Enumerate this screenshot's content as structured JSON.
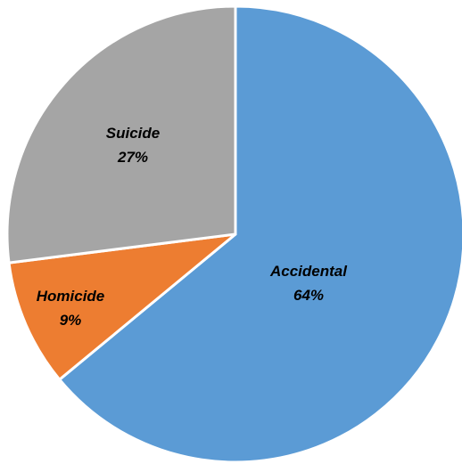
{
  "chart_data": {
    "type": "pie",
    "start_angle_deg": 0,
    "direction": "clockwise",
    "slices": [
      {
        "label": "Accidental",
        "value": 64,
        "display": "64%",
        "color": "#5B9BD5"
      },
      {
        "label": "Homicide",
        "value": 9,
        "display": "9%",
        "color": "#ED7D31"
      },
      {
        "label": "Suicide",
        "value": 27,
        "display": "27%",
        "color": "#A5A5A5"
      }
    ],
    "legend": "none",
    "label_style": "inside, bold italic, name above percentage"
  }
}
